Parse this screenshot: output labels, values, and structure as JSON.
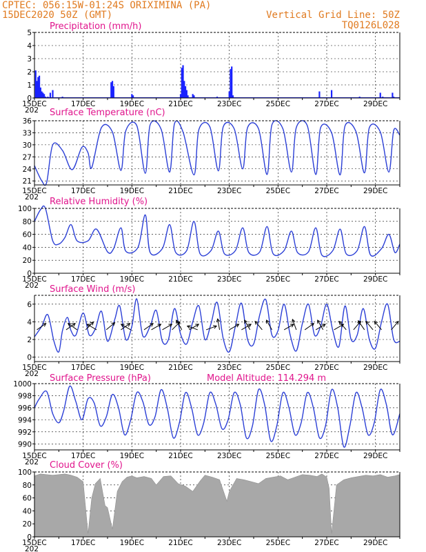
{
  "header": {
    "line1_left": "CPTEC:   056:15W-01:24S   ORIXIMINA (PA)",
    "line2_left": "15DEC2020 50Z (GMT)",
    "line2_right": "Vertical Grid Line: 50Z",
    "line3_right": "TQ0126L028"
  },
  "colors": {
    "header": "#e07a1f",
    "title": "#e0148c",
    "series": "#2b3fd6",
    "precip_bar": "#1a23ff",
    "cloud_fill": "#a8a8a8",
    "arrow": "#000000"
  },
  "x_axis": {
    "start_label": "15DEC",
    "end_day": 30,
    "labeled_days": [
      "15DEC",
      "17DEC",
      "19DEC",
      "21DEC",
      "23DEC",
      "25DEC",
      "27DEC",
      "29DEC"
    ],
    "sub_label": "202"
  },
  "chart_data": [
    {
      "type": "bar",
      "title": "Precipitation (mm/h)",
      "ylim": [
        0,
        5
      ],
      "yticks": [
        "0",
        "1",
        "2",
        "3",
        "4",
        "5"
      ],
      "x_unit": "days since 15DEC 00Z",
      "x": [
        0.05,
        0.1,
        0.15,
        0.2,
        0.25,
        0.3,
        0.35,
        0.4,
        0.45,
        0.55,
        0.65,
        0.75,
        1.15,
        1.2,
        2.15,
        3.15,
        3.2,
        3.25,
        4.0,
        4.05,
        5.15,
        6.0,
        6.05,
        6.1,
        6.15,
        6.2,
        6.25,
        6.3,
        6.5,
        6.55,
        7.5,
        8.0,
        8.05,
        8.1,
        8.15,
        10.2,
        11.7,
        12.2,
        13.35,
        14.2,
        14.3,
        14.7,
        14.75
      ],
      "values": [
        2.1,
        1.3,
        1.6,
        1.7,
        0.8,
        0.5,
        0.4,
        0.3,
        0.1,
        0.1,
        0.4,
        0.6,
        0.1,
        0.05,
        0.05,
        1.2,
        1.3,
        0.9,
        0.3,
        0.2,
        0.05,
        0.3,
        2.3,
        2.5,
        1.3,
        0.9,
        0.6,
        0.2,
        0.3,
        0.2,
        0.1,
        0.5,
        2.2,
        2.4,
        0.2,
        0.05,
        0.5,
        0.6,
        0.1,
        0.4,
        0.1,
        0.4,
        0.1
      ]
    },
    {
      "type": "line",
      "title": "Surface Temperature (nC)",
      "ylim": [
        20,
        36
      ],
      "yticks": [
        "21",
        "24",
        "27",
        "30",
        "33",
        "36"
      ],
      "x_unit": "days since 15DEC 00Z",
      "x": [
        0,
        0.3,
        0.5,
        0.75,
        1.15,
        1.55,
        1.95,
        2.2,
        2.35,
        2.75,
        3.2,
        3.55,
        3.75,
        4.2,
        4.55,
        4.75,
        5.2,
        5.55,
        5.75,
        6.1,
        6.55,
        6.75,
        7.2,
        7.55,
        7.75,
        8.2,
        8.55,
        8.75,
        9.2,
        9.55,
        9.75,
        10.2,
        10.55,
        10.75,
        11.2,
        11.55,
        11.75,
        12.2,
        12.55,
        12.75,
        13.2,
        13.55,
        13.75,
        14.2,
        14.55,
        14.75,
        15.0
      ],
      "values": [
        24.8,
        21.0,
        20.6,
        30.0,
        28.6,
        23.8,
        29.4,
        28.0,
        24.3,
        34.3,
        33.2,
        23.6,
        33.5,
        34.8,
        22.9,
        35.0,
        33.9,
        23.2,
        35.3,
        33.2,
        22.5,
        33.8,
        34.5,
        23.5,
        34.5,
        34.0,
        24.0,
        34.3,
        34.0,
        22.6,
        35.0,
        34.0,
        23.2,
        34.3,
        34.8,
        22.6,
        34.3,
        33.0,
        22.5,
        34.7,
        33.3,
        23.0,
        34.3,
        33.2,
        23.2,
        33.6,
        32.4
      ]
    },
    {
      "type": "line",
      "title": "Relative Humidity (%)",
      "ylim": [
        0,
        100
      ],
      "yticks": [
        "0",
        "20",
        "40",
        "60",
        "80",
        "100"
      ],
      "x_unit": "days since 15DEC 00Z",
      "x": [
        0,
        0.25,
        0.45,
        0.75,
        1.0,
        1.25,
        1.5,
        1.75,
        2.2,
        2.55,
        3.0,
        3.25,
        3.55,
        3.75,
        4.25,
        4.55,
        4.75,
        5.25,
        5.55,
        5.8,
        6.25,
        6.55,
        6.8,
        7.25,
        7.55,
        7.8,
        8.25,
        8.55,
        8.8,
        9.25,
        9.55,
        9.8,
        10.25,
        10.55,
        10.8,
        11.25,
        11.55,
        11.8,
        12.25,
        12.55,
        12.8,
        13.25,
        13.55,
        13.8,
        14.25,
        14.55,
        14.8,
        15.0
      ],
      "values": [
        80,
        98,
        100,
        50,
        45,
        55,
        75,
        50,
        50,
        68,
        33,
        38,
        70,
        34,
        40,
        90,
        32,
        38,
        75,
        32,
        35,
        80,
        30,
        35,
        65,
        30,
        35,
        70,
        32,
        33,
        72,
        30,
        35,
        65,
        32,
        33,
        70,
        28,
        35,
        68,
        30,
        35,
        72,
        28,
        38,
        60,
        32,
        45
      ]
    },
    {
      "type": "line",
      "title": "Surface Wind (m/s)",
      "ylim": [
        -0.5,
        7
      ],
      "yticks": [
        "0",
        "2",
        "4",
        "6"
      ],
      "x_unit": "days since 15DEC 00Z",
      "x": [
        0,
        0.3,
        0.55,
        0.8,
        1.0,
        1.15,
        1.35,
        1.5,
        1.7,
        2.0,
        2.25,
        2.5,
        2.75,
        3.0,
        3.3,
        3.5,
        3.75,
        4.0,
        4.2,
        4.45,
        4.75,
        5.0,
        5.25,
        5.5,
        5.75,
        6.0,
        6.25,
        6.5,
        6.75,
        7.0,
        7.25,
        7.5,
        7.75,
        8.0,
        8.25,
        8.5,
        8.75,
        9.0,
        9.25,
        9.5,
        9.75,
        10.0,
        10.25,
        10.5,
        10.75,
        11.0,
        11.25,
        11.5,
        11.75,
        12.0,
        12.25,
        12.5,
        12.75,
        13.0,
        13.25,
        13.5,
        13.75,
        14.0,
        14.25,
        14.5,
        14.75,
        15.0
      ],
      "values": [
        2.3,
        3.5,
        4.8,
        1.8,
        0.6,
        3.0,
        4.5,
        3.0,
        2.5,
        5.0,
        2.5,
        3.2,
        5.2,
        1.8,
        4.3,
        5.8,
        2.0,
        3.5,
        6.6,
        2.4,
        3.5,
        5.3,
        1.8,
        2.0,
        5.5,
        2.6,
        1.5,
        4.0,
        5.8,
        2.0,
        3.8,
        6.2,
        2.1,
        0.6,
        3.5,
        6.1,
        2.0,
        1.5,
        4.8,
        6.5,
        2.5,
        3.0,
        6.0,
        2.5,
        0.7,
        3.8,
        6.0,
        2.5,
        3.5,
        6.0,
        3.0,
        1.2,
        5.8,
        2.0,
        2.5,
        5.5,
        2.0,
        1.0,
        4.0,
        6.0,
        2.0,
        1.8
      ],
      "arrows": [
        {
          "x": 0.1,
          "dir": 35
        },
        {
          "x": 1.3,
          "dir": 35
        },
        {
          "x": 1.75,
          "dir": 145
        },
        {
          "x": 2.1,
          "dir": 45
        },
        {
          "x": 2.55,
          "dir": 150
        },
        {
          "x": 2.95,
          "dir": 40
        },
        {
          "x": 3.55,
          "dir": 35
        },
        {
          "x": 3.95,
          "dir": 150
        },
        {
          "x": 4.5,
          "dir": 35
        },
        {
          "x": 4.8,
          "dir": 30
        },
        {
          "x": 5.25,
          "dir": 30
        },
        {
          "x": 5.65,
          "dir": 45
        },
        {
          "x": 6.05,
          "dir": 120
        },
        {
          "x": 6.35,
          "dir": 30
        },
        {
          "x": 6.7,
          "dir": 160
        },
        {
          "x": 7.05,
          "dir": 20
        },
        {
          "x": 7.6,
          "dir": 100
        },
        {
          "x": 8.0,
          "dir": 30
        },
        {
          "x": 8.5,
          "dir": 30
        },
        {
          "x": 8.85,
          "dir": 120
        },
        {
          "x": 9.35,
          "dir": 130
        },
        {
          "x": 9.75,
          "dir": 120
        },
        {
          "x": 10.25,
          "dir": 30
        },
        {
          "x": 10.75,
          "dir": 110
        },
        {
          "x": 11.1,
          "dir": 35
        },
        {
          "x": 11.55,
          "dir": 30
        },
        {
          "x": 11.85,
          "dir": 120
        },
        {
          "x": 12.3,
          "dir": 30
        },
        {
          "x": 12.8,
          "dir": 130
        },
        {
          "x": 13.1,
          "dir": 50
        },
        {
          "x": 13.55,
          "dir": 125
        },
        {
          "x": 13.9,
          "dir": 130
        },
        {
          "x": 14.25,
          "dir": 130
        },
        {
          "x": 14.65,
          "dir": 50
        }
      ]
    },
    {
      "type": "line",
      "title": "Surface Pressure (hPa)",
      "annotation": "Model Altitude: 114.294 m",
      "ylim": [
        989,
        1000
      ],
      "yticks": [
        "990",
        "992",
        "994",
        "996",
        "998",
        "1000"
      ],
      "x_unit": "days since 15DEC 00Z",
      "x": [
        0,
        0.2,
        0.5,
        0.75,
        1.0,
        1.2,
        1.45,
        1.7,
        1.95,
        2.2,
        2.45,
        2.7,
        2.95,
        3.2,
        3.45,
        3.7,
        3.95,
        4.2,
        4.45,
        4.7,
        4.95,
        5.2,
        5.45,
        5.7,
        5.95,
        6.2,
        6.45,
        6.7,
        6.95,
        7.2,
        7.45,
        7.7,
        7.95,
        8.2,
        8.45,
        8.7,
        8.95,
        9.2,
        9.45,
        9.7,
        9.95,
        10.2,
        10.45,
        10.7,
        10.95,
        11.2,
        11.45,
        11.7,
        11.95,
        12.2,
        12.45,
        12.7,
        12.95,
        13.2,
        13.45,
        13.7,
        13.95,
        14.2,
        14.45,
        14.7,
        15.0
      ],
      "values": [
        996,
        997.5,
        998.7,
        995,
        993.5,
        995.5,
        999.6,
        997,
        994,
        997.5,
        996.8,
        993,
        994.5,
        998.2,
        996,
        991.5,
        994,
        998.5,
        997,
        993.2,
        994.5,
        999,
        996,
        991,
        993.5,
        998.5,
        996,
        991.5,
        993.5,
        998.5,
        996.5,
        992.5,
        994,
        998.5,
        996.5,
        991,
        993,
        999,
        996.5,
        990.5,
        993,
        998.5,
        996,
        991.5,
        993.5,
        998.5,
        996,
        991,
        993,
        999,
        996,
        989.5,
        993,
        998.5,
        996,
        991.5,
        993.5,
        999,
        996.5,
        991.5,
        995
      ]
    },
    {
      "type": "area",
      "title": "Cloud Cover (%)",
      "ylim": [
        0,
        100
      ],
      "yticks": [
        "0",
        "20",
        "40",
        "60",
        "80",
        "100"
      ],
      "x_unit": "days since 15DEC 00Z",
      "x": [
        0,
        0.25,
        0.5,
        0.75,
        1.0,
        1.25,
        1.5,
        1.75,
        2.0,
        2.2,
        2.35,
        2.5,
        2.7,
        2.9,
        3.0,
        3.2,
        3.4,
        3.6,
        3.8,
        4.0,
        4.2,
        4.5,
        4.8,
        5.0,
        5.3,
        5.6,
        5.9,
        6.2,
        6.5,
        6.8,
        7.0,
        7.3,
        7.6,
        7.9,
        8.0,
        8.3,
        8.6,
        8.9,
        9.2,
        9.5,
        9.8,
        10.1,
        10.4,
        10.7,
        11.0,
        11.3,
        11.6,
        11.8,
        12.0,
        12.1,
        12.2,
        12.4,
        12.7,
        13.0,
        13.3,
        13.6,
        13.9,
        14.2,
        14.5,
        14.8,
        15.0
      ],
      "values": [
        94,
        97,
        96,
        95,
        96,
        97,
        95,
        92,
        85,
        5,
        60,
        82,
        90,
        48,
        45,
        12,
        70,
        85,
        92,
        94,
        91,
        93,
        90,
        80,
        93,
        94,
        82,
        78,
        70,
        86,
        95,
        92,
        88,
        55,
        70,
        90,
        88,
        85,
        82,
        90,
        92,
        94,
        88,
        92,
        96,
        95,
        93,
        97,
        92,
        75,
        5,
        80,
        88,
        91,
        93,
        95,
        94,
        96,
        92,
        94,
        96
      ]
    }
  ]
}
